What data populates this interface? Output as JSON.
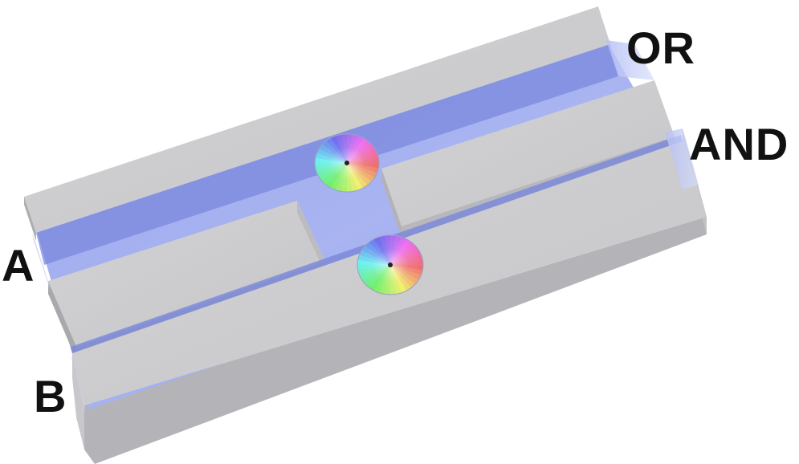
{
  "figure": {
    "description_role": "logic-gate-device-diagram",
    "labels": {
      "output_top": "OR",
      "output_bottom": "AND",
      "input_top": "A",
      "input_bottom": "B"
    },
    "colors": {
      "block_top": "#cfcfd1",
      "block_side": "#b9b9bc",
      "block_edge": "#a6a6aa",
      "channel": "#8f9ee8",
      "channel_light": "#aab5f0",
      "channel_dark": "#7080d8",
      "label": "#111111"
    },
    "resonators": [
      {
        "name": "upper-resonator"
      },
      {
        "name": "lower-resonator"
      }
    ]
  }
}
